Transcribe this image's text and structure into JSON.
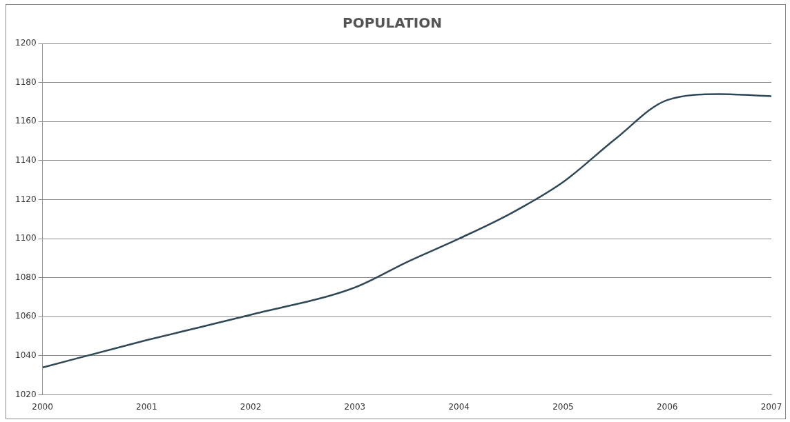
{
  "chart_data": {
    "type": "line",
    "title": "POPULATION",
    "x": [
      2000,
      2001,
      2002,
      2003,
      2003.5,
      2004,
      2004.5,
      2005,
      2005.5,
      2006,
      2006.5,
      2007
    ],
    "series": [
      {
        "color": "#2e4756",
        "values": [
          1034,
          1048,
          1061,
          1075,
          1088,
          1100,
          1113,
          1129,
          1151,
          1171,
          1174,
          1173
        ]
      }
    ],
    "xlim": [
      2000,
      2007
    ],
    "xticks": [
      2000,
      2001,
      2002,
      2003,
      2004,
      2005,
      2006,
      2007
    ],
    "ylim": [
      1020,
      1200
    ],
    "yticks": [
      1020,
      1040,
      1060,
      1080,
      1100,
      1120,
      1140,
      1160,
      1180,
      1200
    ],
    "grid": "y",
    "legend": false,
    "marker": "none",
    "line_style": "solid"
  }
}
